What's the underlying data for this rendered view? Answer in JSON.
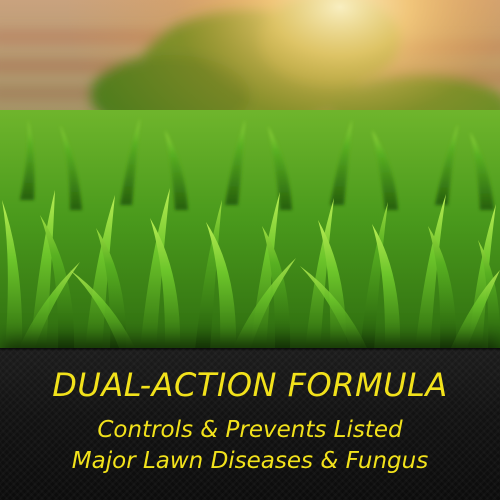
{
  "banner": {
    "headline": "DUAL-ACTION FORMULA",
    "subline_1": "Controls & Prevents Listed",
    "subline_2": "Major Lawn Diseases & Fungus",
    "text_color": "#f2e21b",
    "background_color": "#141414"
  },
  "photo": {
    "subject": "close-up-lawn-grass-with-warm-sunlight-background"
  }
}
